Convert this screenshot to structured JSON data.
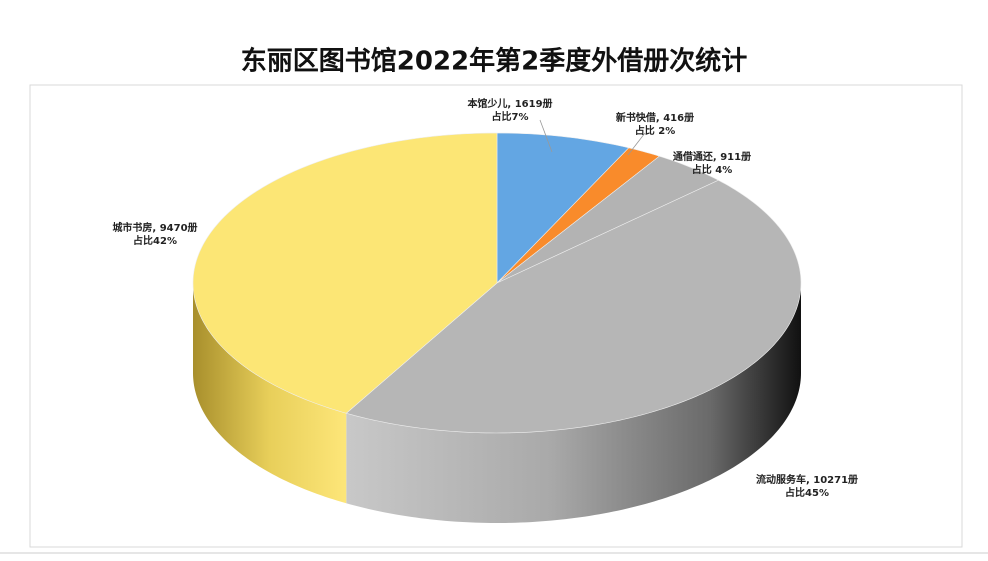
{
  "chart_data": {
    "type": "pie",
    "three_d": true,
    "title": "东丽区图书馆2022年第2季度外借册次统计",
    "values": [
      1619,
      416,
      911,
      10271,
      9470
    ],
    "value_labels": [
      "本馆少儿, 1619册",
      "新书快借, 416册",
      "通借通还, 911册",
      "流动服务车, 10271册",
      "城市书房, 9470册"
    ],
    "share_labels": [
      "占比7%",
      "占比 2%",
      "占比 4%",
      "占比45%",
      "占比42%"
    ],
    "colors": [
      "#63a6e3",
      "#f98b2b",
      "#b3b3b3",
      "#b6b6b6",
      "#fce675"
    ]
  }
}
